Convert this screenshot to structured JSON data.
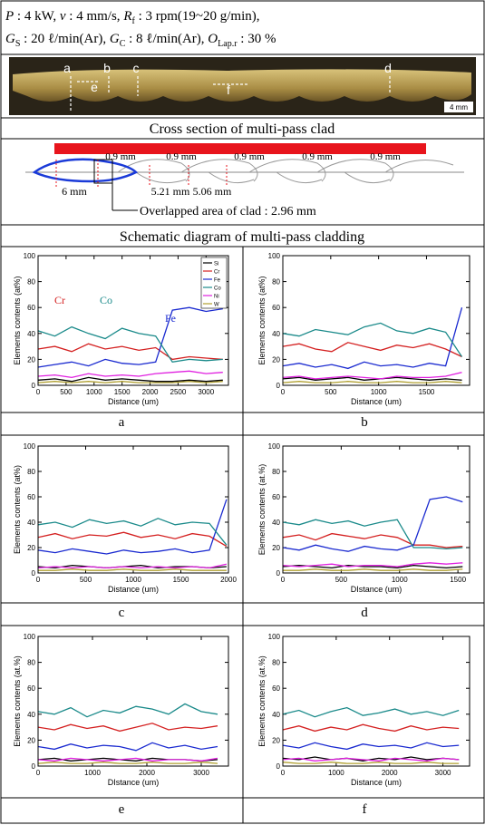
{
  "header": {
    "line1": [
      "P",
      " : 4 kW,  ",
      "v",
      " : 4 mm/s,  ",
      "R",
      "f",
      " : 3 rpm(19~20 g/min),"
    ],
    "line2": [
      "G",
      "S",
      " : 20 ℓ/min(Ar),  ",
      "G",
      "C",
      " : 8 ℓ/min(Ar),  ",
      "O",
      "Lap.r",
      " : 30 %"
    ]
  },
  "photo": {
    "labels": [
      "a",
      "b",
      "c",
      "d",
      "e",
      "f"
    ],
    "scale": "4 mm",
    "caption": "Cross section of multi-pass clad"
  },
  "diagram": {
    "gaps": [
      "0.9 mm",
      "0.9 mm",
      "0.9 mm",
      "0.9 mm",
      "0.9 mm"
    ],
    "widths": [
      "6 mm",
      "5.21 mm",
      "5.06 mm"
    ],
    "overlap": "Overlapped area of clad : 2.96 mm",
    "caption": "Schematic diagram of multi-pass cladding"
  },
  "chart_data": [
    {
      "type": "line",
      "caption": "a",
      "xlabel": "Distance (um)",
      "ylabel": "Elements contents (at%)",
      "xlim": [
        0,
        3400
      ],
      "xticks": [
        0,
        500,
        1000,
        1500,
        2000,
        2500,
        3000
      ],
      "ylim": [
        0,
        100
      ],
      "yticks": [
        0,
        20,
        40,
        60,
        80,
        100
      ],
      "legend": "upper right",
      "annotations": [
        {
          "text": "Cr",
          "color": "#d42020"
        },
        {
          "text": "Co",
          "color": "#1a8a8a"
        },
        {
          "text": "Fe",
          "color": "#1a2ad0"
        }
      ],
      "x": [
        0,
        300,
        600,
        900,
        1200,
        1500,
        1800,
        2100,
        2400,
        2700,
        3000,
        3300
      ],
      "series": [
        {
          "name": "Si",
          "color": "#000000",
          "values": [
            4,
            5,
            3,
            6,
            4,
            5,
            4,
            3,
            3,
            4,
            3,
            4
          ]
        },
        {
          "name": "Cr",
          "color": "#d42020",
          "values": [
            28,
            30,
            26,
            32,
            28,
            30,
            27,
            29,
            20,
            22,
            21,
            20
          ]
        },
        {
          "name": "Fe",
          "color": "#1a2ad0",
          "values": [
            14,
            16,
            18,
            15,
            20,
            17,
            16,
            18,
            58,
            60,
            57,
            59
          ]
        },
        {
          "name": "Co",
          "color": "#1a8a8a",
          "values": [
            42,
            38,
            45,
            40,
            36,
            44,
            40,
            38,
            18,
            20,
            19,
            20
          ]
        },
        {
          "name": "Ni",
          "color": "#e020e0",
          "values": [
            7,
            8,
            6,
            9,
            7,
            8,
            7,
            9,
            10,
            11,
            9,
            10
          ]
        },
        {
          "name": "W",
          "color": "#b0a030",
          "values": [
            2,
            3,
            2,
            3,
            2,
            3,
            2,
            2,
            2,
            3,
            2,
            3
          ]
        }
      ]
    },
    {
      "type": "line",
      "caption": "b",
      "xlabel": "Distance (um)",
      "ylabel": "Elements contents (at%)",
      "xlim": [
        0,
        1950
      ],
      "xticks": [
        0,
        500,
        1000,
        1500
      ],
      "ylim": [
        0,
        100
      ],
      "yticks": [
        0,
        20,
        40,
        60,
        80,
        100
      ],
      "x": [
        0,
        170,
        340,
        510,
        680,
        850,
        1020,
        1190,
        1360,
        1530,
        1700,
        1870
      ],
      "series": [
        {
          "color": "#000000",
          "values": [
            5,
            6,
            4,
            5,
            6,
            4,
            5,
            6,
            5,
            4,
            5,
            4
          ]
        },
        {
          "color": "#d42020",
          "values": [
            30,
            32,
            28,
            26,
            33,
            30,
            27,
            31,
            29,
            32,
            28,
            22
          ]
        },
        {
          "color": "#1a2ad0",
          "values": [
            15,
            17,
            14,
            16,
            13,
            18,
            15,
            16,
            14,
            17,
            15,
            60
          ]
        },
        {
          "color": "#1a8a8a",
          "values": [
            40,
            38,
            43,
            41,
            39,
            45,
            48,
            42,
            40,
            44,
            41,
            22
          ]
        },
        {
          "color": "#e020e0",
          "values": [
            6,
            7,
            5,
            6,
            7,
            6,
            5,
            7,
            6,
            6,
            7,
            10
          ]
        },
        {
          "color": "#b0a030",
          "values": [
            2,
            3,
            2,
            2,
            3,
            2,
            2,
            3,
            2,
            2,
            3,
            2
          ]
        }
      ]
    },
    {
      "type": "line",
      "caption": "c",
      "xlabel": "Distance (um)",
      "ylabel": "Elements contents (at%)",
      "xlim": [
        0,
        2000
      ],
      "xticks": [
        0,
        500,
        1000,
        1500,
        2000
      ],
      "ylim": [
        0,
        100
      ],
      "yticks": [
        0,
        20,
        40,
        60,
        80,
        100
      ],
      "x": [
        0,
        180,
        360,
        540,
        720,
        900,
        1080,
        1260,
        1440,
        1620,
        1800,
        1980
      ],
      "series": [
        {
          "color": "#000000",
          "values": [
            5,
            4,
            6,
            5,
            4,
            5,
            6,
            4,
            5,
            5,
            4,
            5
          ]
        },
        {
          "color": "#d42020",
          "values": [
            28,
            31,
            27,
            30,
            29,
            32,
            28,
            30,
            27,
            31,
            29,
            21
          ]
        },
        {
          "color": "#1a2ad0",
          "values": [
            18,
            16,
            19,
            17,
            15,
            18,
            16,
            17,
            19,
            16,
            18,
            58
          ]
        },
        {
          "color": "#1a8a8a",
          "values": [
            38,
            40,
            36,
            42,
            39,
            41,
            37,
            43,
            38,
            40,
            39,
            22
          ]
        },
        {
          "color": "#e020e0",
          "values": [
            4,
            5,
            4,
            5,
            4,
            5,
            4,
            5,
            4,
            5,
            4,
            7
          ]
        },
        {
          "color": "#b0a030",
          "values": [
            2,
            2,
            3,
            2,
            2,
            3,
            2,
            2,
            3,
            2,
            2,
            2
          ]
        }
      ]
    },
    {
      "type": "line",
      "caption": "d",
      "xlabel": "DIstance (um)",
      "ylabel": "Elements contents (at.%)",
      "xlim": [
        0,
        1600
      ],
      "xticks": [
        0,
        500,
        1000,
        1500
      ],
      "ylim": [
        0,
        100
      ],
      "yticks": [
        0,
        20,
        40,
        60,
        80,
        100
      ],
      "x": [
        0,
        140,
        280,
        420,
        560,
        700,
        840,
        980,
        1120,
        1260,
        1400,
        1540
      ],
      "series": [
        {
          "color": "#000000",
          "values": [
            5,
            6,
            5,
            4,
            6,
            5,
            5,
            4,
            6,
            5,
            4,
            5
          ]
        },
        {
          "color": "#d42020",
          "values": [
            28,
            30,
            26,
            31,
            29,
            27,
            30,
            28,
            22,
            22,
            20,
            21
          ]
        },
        {
          "color": "#1a2ad0",
          "values": [
            20,
            18,
            22,
            19,
            17,
            21,
            19,
            18,
            22,
            58,
            60,
            56
          ]
        },
        {
          "color": "#1a8a8a",
          "values": [
            40,
            38,
            42,
            39,
            41,
            37,
            40,
            42,
            20,
            20,
            19,
            20
          ]
        },
        {
          "color": "#e020e0",
          "values": [
            6,
            5,
            6,
            7,
            5,
            6,
            6,
            5,
            7,
            8,
            7,
            8
          ]
        },
        {
          "color": "#b0a030",
          "values": [
            2,
            2,
            3,
            2,
            2,
            3,
            2,
            2,
            3,
            2,
            2,
            3
          ]
        }
      ]
    },
    {
      "type": "line",
      "caption": "e",
      "xlabel": "DIstance (um)",
      "ylabel": "Elements contents (at.%)",
      "xlim": [
        0,
        3500
      ],
      "xticks": [
        0,
        1000,
        2000,
        3000
      ],
      "ylim": [
        0,
        100
      ],
      "yticks": [
        0,
        20,
        40,
        60,
        80,
        100
      ],
      "x": [
        0,
        300,
        600,
        900,
        1200,
        1500,
        1800,
        2100,
        2400,
        2700,
        3000,
        3300
      ],
      "series": [
        {
          "color": "#000000",
          "values": [
            5,
            6,
            4,
            5,
            6,
            5,
            4,
            6,
            5,
            5,
            4,
            5
          ]
        },
        {
          "color": "#d42020",
          "values": [
            30,
            28,
            32,
            29,
            31,
            27,
            30,
            33,
            28,
            30,
            29,
            31
          ]
        },
        {
          "color": "#1a2ad0",
          "values": [
            15,
            13,
            17,
            14,
            16,
            15,
            12,
            18,
            14,
            16,
            13,
            15
          ]
        },
        {
          "color": "#1a8a8a",
          "values": [
            42,
            40,
            45,
            38,
            43,
            41,
            46,
            44,
            40,
            48,
            42,
            40
          ]
        },
        {
          "color": "#e020e0",
          "values": [
            5,
            4,
            6,
            5,
            4,
            5,
            6,
            4,
            5,
            5,
            4,
            6
          ]
        },
        {
          "color": "#b0a030",
          "values": [
            2,
            3,
            2,
            2,
            3,
            2,
            2,
            3,
            2,
            2,
            3,
            2
          ]
        }
      ]
    },
    {
      "type": "line",
      "caption": "f",
      "xlabel": "Distance (um)",
      "ylabel": "Elements contents (at.%)",
      "xlim": [
        0,
        3500
      ],
      "xticks": [
        0,
        1000,
        2000,
        3000
      ],
      "ylim": [
        0,
        100
      ],
      "yticks": [
        0,
        20,
        40,
        60,
        80,
        100
      ],
      "x": [
        0,
        300,
        600,
        900,
        1200,
        1500,
        1800,
        2100,
        2400,
        2700,
        3000,
        3300
      ],
      "series": [
        {
          "color": "#000000",
          "values": [
            6,
            5,
            7,
            5,
            6,
            4,
            6,
            5,
            7,
            5,
            6,
            5
          ]
        },
        {
          "color": "#d42020",
          "values": [
            28,
            31,
            27,
            30,
            28,
            32,
            29,
            27,
            31,
            28,
            30,
            29
          ]
        },
        {
          "color": "#1a2ad0",
          "values": [
            16,
            14,
            18,
            15,
            13,
            17,
            15,
            16,
            14,
            18,
            15,
            16
          ]
        },
        {
          "color": "#1a8a8a",
          "values": [
            40,
            43,
            38,
            42,
            45,
            39,
            41,
            44,
            40,
            42,
            39,
            43
          ]
        },
        {
          "color": "#e020e0",
          "values": [
            5,
            6,
            4,
            5,
            6,
            5,
            4,
            6,
            5,
            4,
            6,
            5
          ]
        },
        {
          "color": "#b0a030",
          "values": [
            3,
            2,
            2,
            3,
            2,
            2,
            3,
            2,
            2,
            3,
            2,
            2
          ]
        }
      ]
    }
  ]
}
